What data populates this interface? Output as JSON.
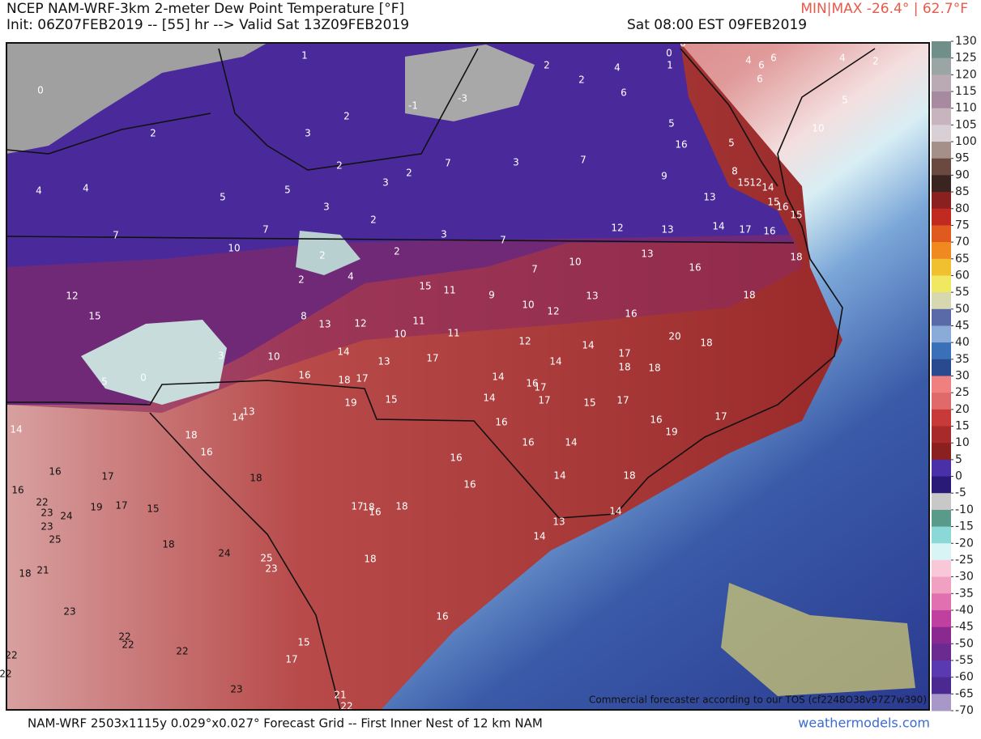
{
  "header": {
    "title": "NCEP NAM-WRF-3km 2-meter Dew Point Temperature [°F]",
    "init": "Init: 06Z07FEB2019 -- [55] hr --> Valid Sat 13Z09FEB2019",
    "valid": "Sat 08:00 EST 09FEB2019",
    "minmax": "MIN|MAX -26.4° | 62.7°F"
  },
  "footer": {
    "grid": "NAM-WRF 2503x1115y 0.029°x0.027° Forecast Grid -- First Inner Nest of 12 km NAM",
    "site": "weathermodels.com"
  },
  "map": {
    "notice": "Commercial forecaster according to our TOS (cf2248O38v97Z7w390)",
    "labels": [
      1,
      0,
      0,
      1,
      4,
      2,
      2,
      6,
      4,
      6,
      6,
      6,
      4,
      2,
      5,
      10,
      0,
      2,
      3,
      2,
      -1,
      -3,
      5,
      16,
      5,
      7,
      3,
      7,
      2,
      3,
      2,
      9,
      8,
      15,
      12,
      14,
      4,
      4,
      5,
      5,
      3,
      2,
      13,
      15,
      16,
      15,
      7,
      7,
      3,
      7,
      12,
      13,
      14,
      17,
      16,
      10,
      2,
      2,
      4,
      2,
      10,
      13,
      16,
      18,
      7,
      15,
      11,
      9,
      10,
      12,
      13,
      12,
      15,
      8,
      13,
      12,
      11,
      10,
      11,
      16,
      18,
      20,
      18,
      12,
      14,
      14,
      17,
      18,
      18,
      3,
      10,
      14,
      13,
      17,
      0,
      5,
      16,
      18,
      17,
      14,
      16,
      17,
      17,
      15,
      17,
      19,
      15,
      14,
      13,
      14,
      17,
      16,
      19,
      14,
      18,
      16,
      16,
      16,
      14,
      16,
      16,
      14,
      18,
      16,
      17,
      16,
      18,
      14,
      13,
      14,
      18,
      18,
      17,
      16,
      22,
      23,
      24,
      19,
      17,
      15,
      23,
      25,
      18,
      24,
      25,
      23,
      18,
      18,
      21,
      23,
      22,
      22,
      16,
      22,
      15,
      17,
      22,
      22,
      23,
      21,
      22
    ]
  },
  "colorbar": {
    "ticks": [
      130,
      125,
      120,
      115,
      110,
      105,
      100,
      95,
      90,
      85,
      80,
      75,
      70,
      65,
      60,
      55,
      50,
      45,
      40,
      35,
      30,
      25,
      20,
      15,
      10,
      5,
      0,
      -5,
      -10,
      -15,
      -20,
      -25,
      -30,
      -35,
      -40,
      -45,
      -50,
      -55,
      -60,
      -65,
      -70
    ],
    "colors": [
      "#6f8f88",
      "#9aa6a3",
      "#b9aab4",
      "#a88aa0",
      "#c8b4be",
      "#d8d0d4",
      "#a49088",
      "#6a4a40",
      "#3a2420",
      "#8a2020",
      "#c02a20",
      "#e05a20",
      "#f08a20",
      "#f0c030",
      "#f0e860",
      "#d8d8b0",
      "#5a6aa8",
      "#8aaad8",
      "#3a70b8",
      "#2a4a90",
      "#f08080",
      "#e06a6a",
      "#c83a3a",
      "#a82a2a",
      "#8a2020",
      "#4a30a8",
      "#2a1a78",
      "#c8c8c8",
      "#5a9a8a",
      "#8ad8d8",
      "#d8f4f4",
      "#f8c8d8",
      "#f0a0c0",
      "#e070b0",
      "#c040a0",
      "#8a2a90",
      "#6a2a90",
      "#5a3ab0",
      "#4a2a90",
      "#a898c8"
    ]
  }
}
